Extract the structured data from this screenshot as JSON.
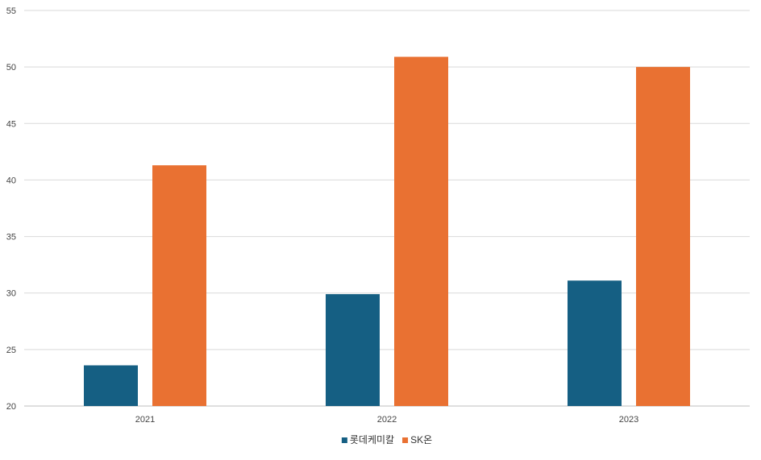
{
  "chart_data": {
    "type": "bar",
    "categories": [
      "2021",
      "2022",
      "2023"
    ],
    "series": [
      {
        "name": "롯데케미칼",
        "color": "#155f83",
        "values": [
          23.6,
          29.9,
          31.1
        ]
      },
      {
        "name": "SK온",
        "color": "#e97132",
        "values": [
          41.3,
          50.9,
          50.0
        ]
      }
    ],
    "title": "",
    "xlabel": "",
    "ylabel": "",
    "ylim": [
      20,
      55
    ],
    "yticks": [
      20,
      25,
      30,
      35,
      40,
      45,
      50,
      55
    ],
    "grid": true,
    "legend": "bottom-center"
  }
}
